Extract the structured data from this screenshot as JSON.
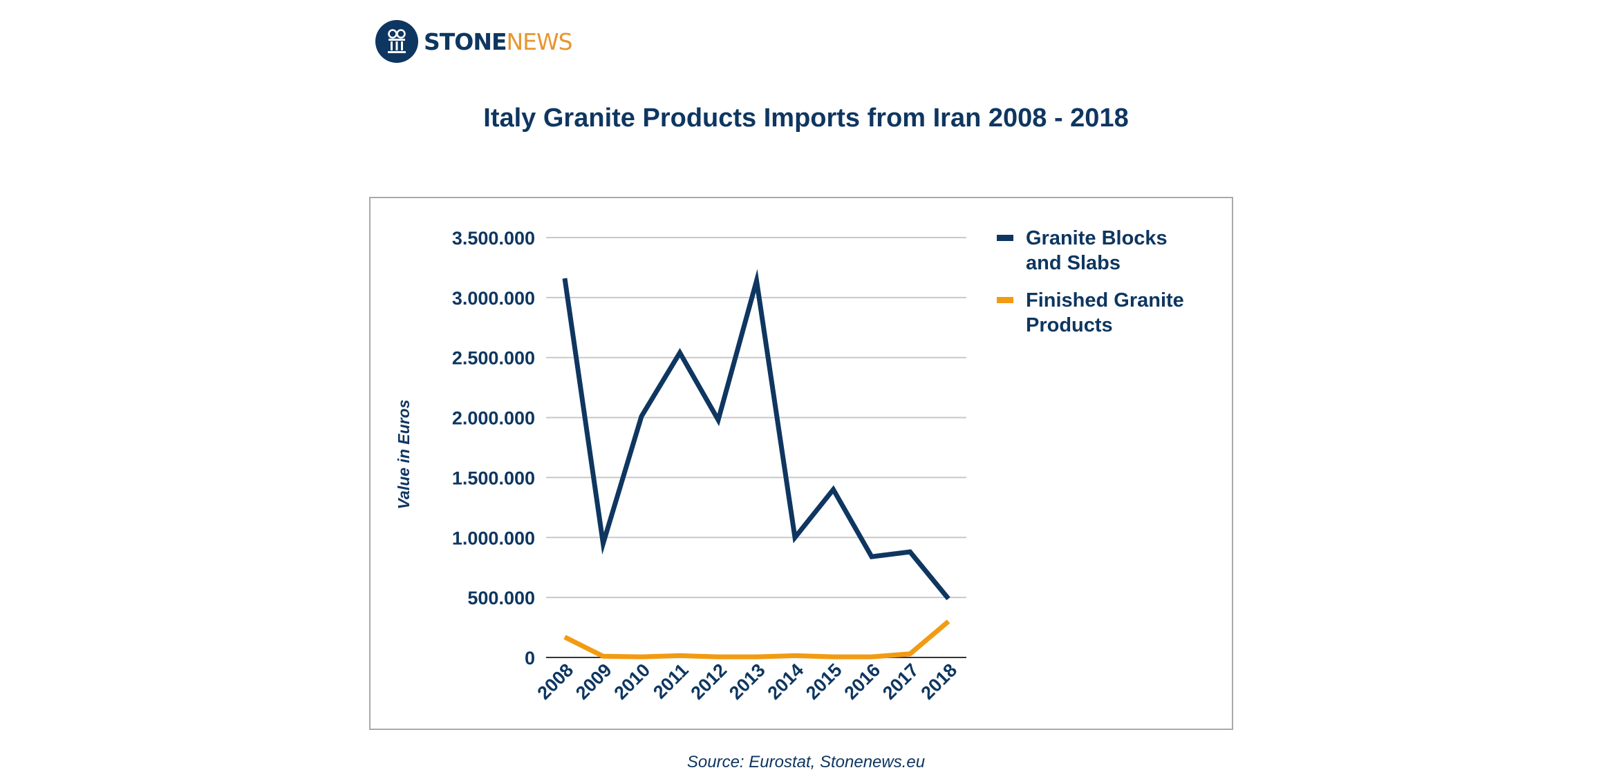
{
  "logo": {
    "brand_primary": "STONE",
    "brand_secondary": "NEWS",
    "color_primary": "#0e3660",
    "color_secondary": "#e8962e",
    "icon": "column-pillar-icon"
  },
  "title": "Italy Granite Products Imports from Iran 2008 - 2018",
  "source": "Source: Eurostat, Stonenews.eu",
  "chart_data": {
    "type": "line",
    "title": "Italy Granite Products Imports from Iran 2008 - 2018",
    "xlabel": "",
    "ylabel": "Value in Euros",
    "x": [
      "2008",
      "2009",
      "2010",
      "2011",
      "2012",
      "2013",
      "2014",
      "2015",
      "2016",
      "2017",
      "2018"
    ],
    "ylim": [
      0,
      3500000
    ],
    "yticks": [
      0,
      500000,
      1000000,
      1500000,
      2000000,
      2500000,
      3000000,
      3500000
    ],
    "ytick_labels": [
      "0",
      "500.000",
      "1.000.000",
      "1.500.000",
      "2.000.000",
      "2.500.000",
      "3.000.000",
      "3.500.000"
    ],
    "grid": true,
    "legend_position": "right",
    "series": [
      {
        "name": "Granite Blocks and Slabs",
        "legend_lines": [
          "Granite Blocks",
          "and Slabs"
        ],
        "color": "#0e3660",
        "values": [
          3160000,
          950000,
          2010000,
          2540000,
          1980000,
          3140000,
          1000000,
          1400000,
          840000,
          880000,
          490000
        ]
      },
      {
        "name": "Finished Granite Products",
        "legend_lines": [
          "Finished Granite",
          "Products"
        ],
        "color": "#f29b12",
        "values": [
          170000,
          10000,
          5000,
          15000,
          5000,
          5000,
          15000,
          5000,
          5000,
          30000,
          300000
        ]
      }
    ]
  }
}
